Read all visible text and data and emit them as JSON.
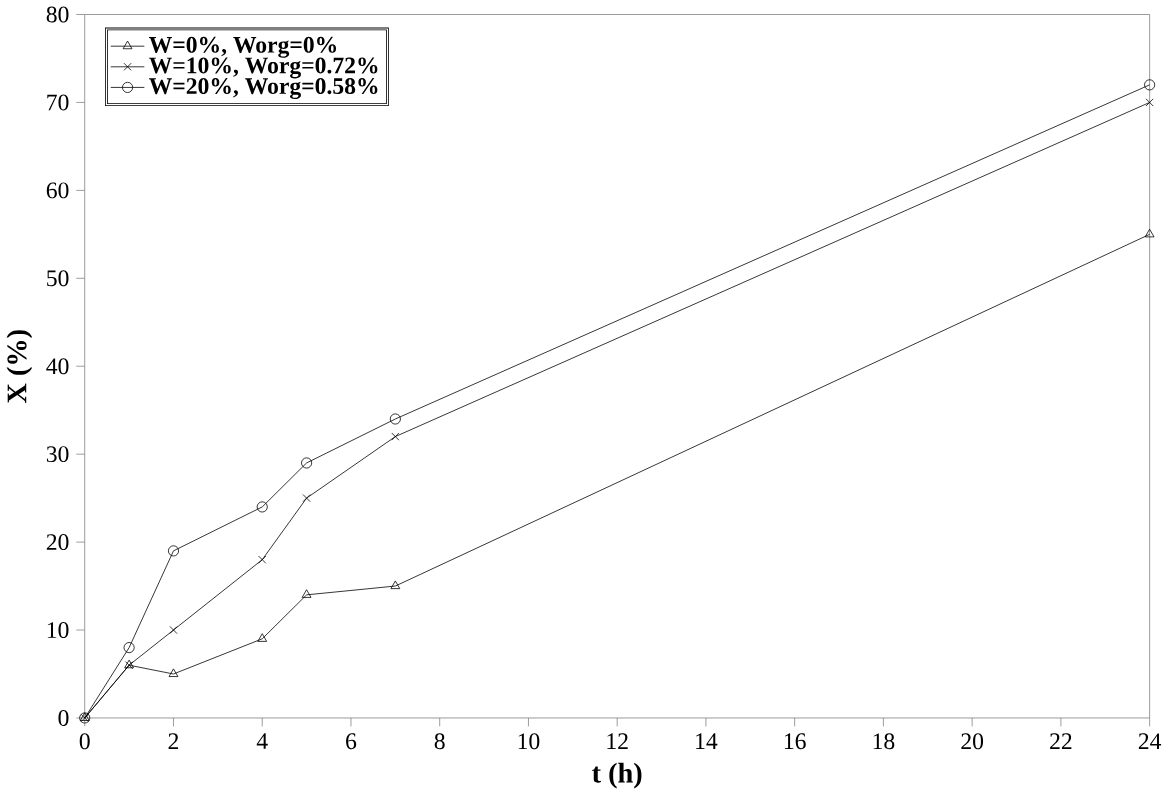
{
  "chart_data": {
    "type": "line",
    "xlabel": "t (h)",
    "ylabel": "X (%)",
    "xlim": [
      0,
      24
    ],
    "ylim": [
      0,
      80
    ],
    "xticks": [
      0,
      2,
      4,
      6,
      8,
      10,
      12,
      14,
      16,
      18,
      20,
      22,
      24
    ],
    "yticks": [
      0,
      10,
      20,
      30,
      40,
      50,
      60,
      70,
      80
    ],
    "grid": false,
    "legend": "top left",
    "line_style": "solid",
    "series": [
      {
        "name": "W=0%, Worg=0%",
        "color": "#000000",
        "marker": "triangle",
        "x": [
          0,
          1,
          2,
          4,
          5,
          7,
          24
        ],
        "values": [
          0,
          6,
          5,
          9,
          14,
          15,
          55
        ]
      },
      {
        "name": "W=10%, Worg=0.72%",
        "color": "#000000",
        "marker": "cross",
        "x": [
          0,
          1,
          2,
          4,
          5,
          7,
          24
        ],
        "values": [
          0,
          6,
          10,
          18,
          25,
          32,
          70
        ]
      },
      {
        "name": "W=20%, Worg=0.58%",
        "color": "#000000",
        "marker": "circle",
        "x": [
          0,
          1,
          2,
          4,
          5,
          7,
          24
        ],
        "values": [
          0,
          8,
          19,
          24,
          29,
          34,
          72
        ]
      }
    ]
  }
}
